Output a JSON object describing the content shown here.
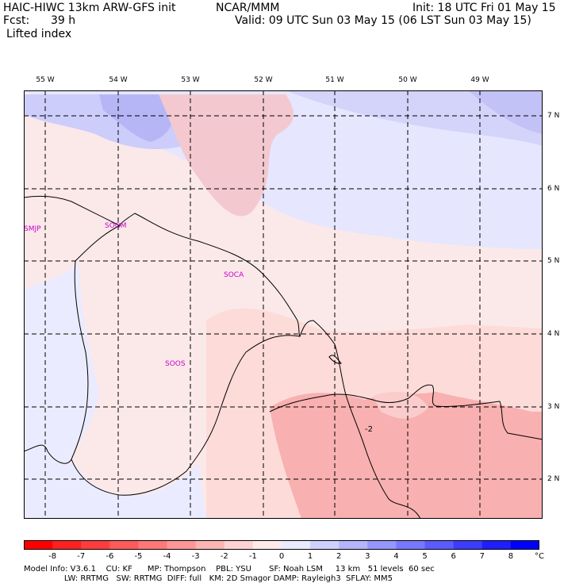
{
  "header": {
    "model": "HAIC-HIWC 13km ARW-GFS init",
    "org": "NCAR/MMM",
    "init": "Init: 18 UTC Fri 01 May 15",
    "fcst_label": "Fcst:",
    "fcst_value": "39 h",
    "valid": "Valid: 09 UTC Sun 03 May 15 (06 LST Sun 03 May 15)",
    "field": "Lifted index"
  },
  "axes": {
    "lon_labels": [
      "55 W",
      "54 W",
      "53 W",
      "52 W",
      "51 W",
      "50 W",
      "49 W"
    ],
    "lat_labels": [
      "7 N",
      "6 N",
      "5 N",
      "4 N",
      "3 N",
      "2 N"
    ]
  },
  "stations": [
    "SMJP",
    "SOCA",
    "SOOS",
    "SOGM"
  ],
  "contour_label": "-2",
  "colorbar": {
    "ticks": [
      "-8",
      "-7",
      "-6",
      "-5",
      "-4",
      "-3",
      "-2",
      "-1",
      "0",
      "1",
      "2",
      "3",
      "4",
      "5",
      "6",
      "7",
      "8"
    ],
    "unit": "°C",
    "colors": [
      "#ff0000",
      "#ff2020",
      "#ff3c3c",
      "#ff5a5a",
      "#ff7878",
      "#ff9696",
      "#ffb4b4",
      "#ffd2d2",
      "#ffeaea",
      "#eaeaff",
      "#d0d0ff",
      "#b4b4ff",
      "#9696ff",
      "#7878ff",
      "#5a5aff",
      "#3c3cff",
      "#1e1eff",
      "#0000ff"
    ]
  },
  "footer": {
    "line1": "Model Info: V3.6.1    CU: KF      MP: Thompson    PBL: YSU       SF: Noah LSM     13 km   51 levels  60 sec",
    "line2": "                LW: RRTMG   SW: RRTMG  DIFF: full   KM: 2D Smagor DAMP: Rayleigh3  SFLAY: MM5"
  }
}
